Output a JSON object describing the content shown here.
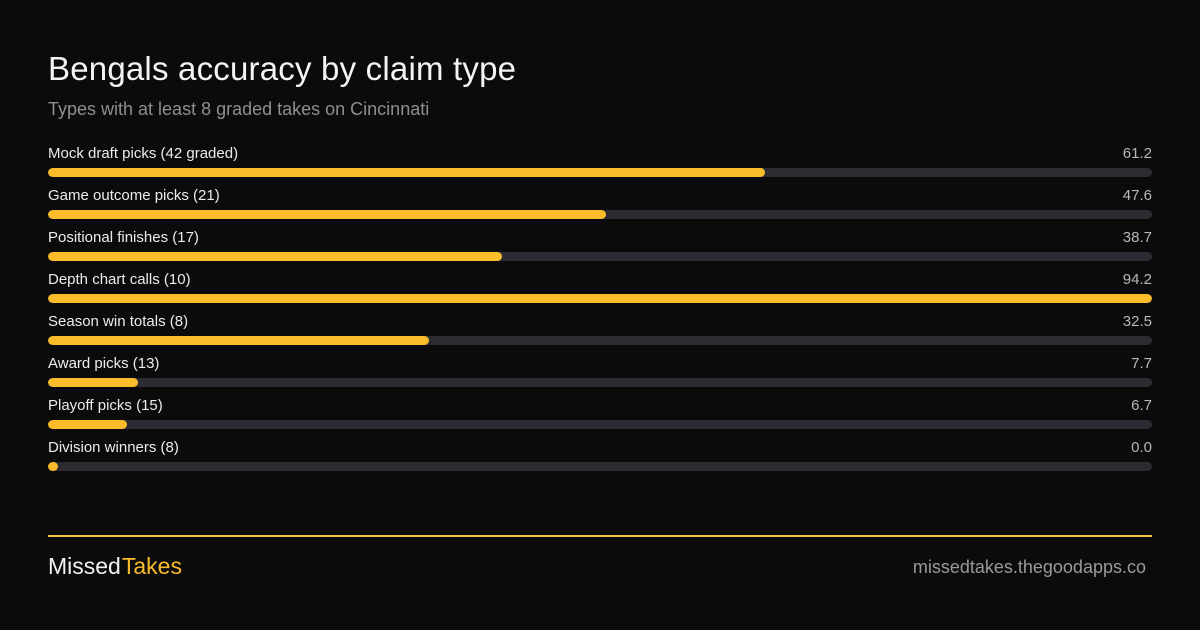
{
  "header": {
    "title": "Bengals accuracy by claim type",
    "subtitle": "Types with at least 8 graded takes on Cincinnati"
  },
  "chart_data": {
    "type": "bar",
    "orientation": "horizontal",
    "categories": [
      "Mock draft picks (42 graded)",
      "Game outcome picks (21)",
      "Positional finishes (17)",
      "Depth chart calls (10)",
      "Season win totals (8)",
      "Award picks (13)",
      "Playoff picks (15)",
      "Division winners (8)"
    ],
    "value_labels": [
      "61.2",
      "47.6",
      "38.7",
      "94.2",
      "32.5",
      "7.7",
      "6.7",
      "0.0"
    ],
    "values": [
      61.2,
      47.6,
      38.7,
      94.2,
      32.5,
      7.7,
      6.7,
      0.0
    ],
    "xlim": [
      0,
      94.2
    ],
    "bar_color": "#fbbc2c",
    "track_color": "#2c2b31"
  },
  "footer": {
    "brand_part1": "Missed",
    "brand_part2": "Takes",
    "site": "missedtakes.thegoodapps.co",
    "accent_color": "#fbbc2c"
  }
}
